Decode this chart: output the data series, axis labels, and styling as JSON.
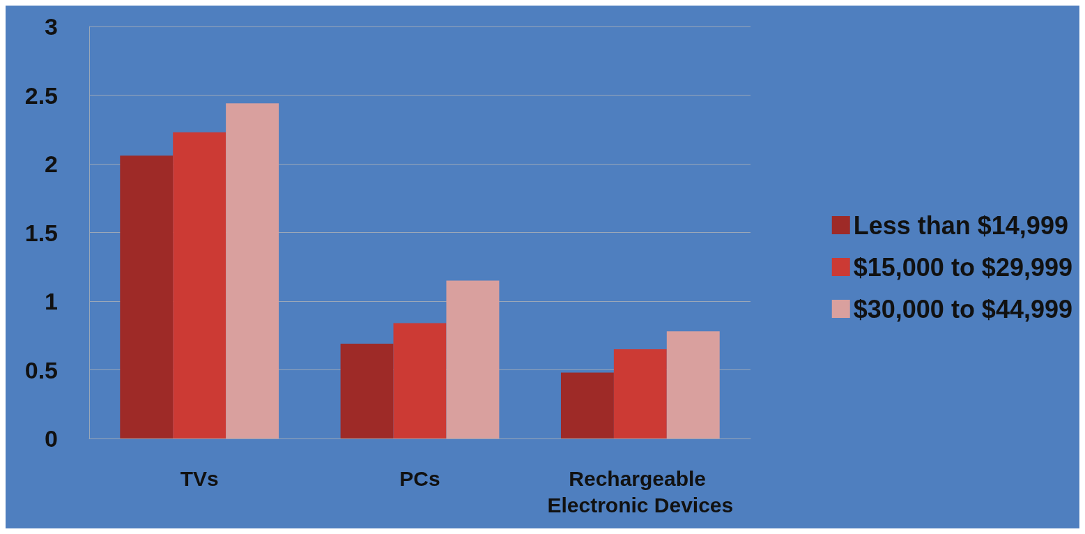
{
  "chart_data": {
    "type": "bar",
    "categories": [
      "TVs",
      "PCs",
      "Rechargeable Electronic Devices"
    ],
    "series": [
      {
        "name": "Less than $14,999",
        "color": "#9e2a27",
        "values": [
          2.06,
          0.69,
          0.48
        ]
      },
      {
        "name": "$15,000 to $29,999",
        "color": "#cc3a34",
        "values": [
          2.23,
          0.84,
          0.65
        ]
      },
      {
        "name": "$30,000 to $44,999",
        "color": "#d9a09e",
        "values": [
          2.44,
          1.15,
          0.78
        ]
      }
    ],
    "ylim": [
      0,
      3
    ],
    "yticks": [
      0,
      0.5,
      1,
      1.5,
      2,
      2.5,
      3
    ],
    "grid": "y",
    "legend": "right"
  }
}
